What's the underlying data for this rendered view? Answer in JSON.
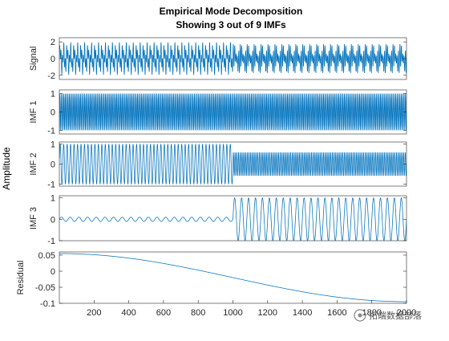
{
  "figure": {
    "title_line1": "Empirical Mode Decomposition",
    "title_line2": "Showing 3 out of 9 IMFs",
    "common_ylabel": "Amplitude",
    "watermark": "拓端数据部落"
  },
  "colors": {
    "line": "#0072BD",
    "axes": "#262626",
    "background": "#ffffff"
  },
  "chart_data": {
    "type": "line",
    "xlim": [
      0,
      2000
    ],
    "x_ticks": [
      200,
      400,
      600,
      800,
      1000,
      1200,
      1400,
      1600,
      1800,
      2000
    ],
    "x_tick_labels": [
      "200",
      "400",
      "600",
      "800",
      "1000",
      "1200",
      "1400",
      "1600",
      "1800",
      "2000"
    ],
    "n_samples": 2000,
    "panels": [
      {
        "ylabel": "Signal",
        "ylim": [
          -2.5,
          2.5
        ],
        "y_ticks": [
          -2,
          0,
          2
        ],
        "y_tick_labels": [
          "-2",
          "0",
          "2"
        ],
        "components": [
          {
            "from": 1,
            "to": 1000,
            "frequency_cycles_per_sample": 0.125,
            "amplitude": 1.0
          },
          {
            "from": 1,
            "to": 1000,
            "frequency_cycles_per_sample": 0.05,
            "amplitude": 1.0
          },
          {
            "from": 1001,
            "to": 2000,
            "frequency_cycles_per_sample": 0.125,
            "amplitude": 1.0
          },
          {
            "from": 1001,
            "to": 2000,
            "frequency_cycles_per_sample": 0.1,
            "amplitude": 0.6
          },
          {
            "from": 1001,
            "to": 2000,
            "frequency_cycles_per_sample": 0.025,
            "amplitude": 0.5
          }
        ]
      },
      {
        "ylabel": "IMF 1",
        "ylim": [
          -1.2,
          1.2
        ],
        "y_ticks": [
          -1,
          0,
          1
        ],
        "y_tick_labels": [
          "-1",
          "0",
          "1"
        ],
        "components": [
          {
            "from": 1,
            "to": 1000,
            "frequency_cycles_per_sample": 0.125,
            "amplitude": 1.0
          },
          {
            "from": 1001,
            "to": 2000,
            "frequency_cycles_per_sample": 0.125,
            "amplitude": 1.0
          }
        ]
      },
      {
        "ylabel": "IMF 2",
        "ylim": [
          -1.1,
          1.1
        ],
        "y_ticks": [
          -1,
          0,
          1
        ],
        "y_tick_labels": [
          "-1",
          "0",
          "1"
        ],
        "components": [
          {
            "from": 1,
            "to": 1000,
            "frequency_cycles_per_sample": 0.05,
            "amplitude": 1.0
          },
          {
            "from": 1001,
            "to": 2000,
            "frequency_cycles_per_sample": 0.1,
            "amplitude": 0.6
          }
        ]
      },
      {
        "ylabel": "IMF 3",
        "ylim": [
          -1.0,
          1.1
        ],
        "y_ticks": [
          -1,
          0,
          1
        ],
        "y_tick_labels": [
          "-1",
          "0",
          "1"
        ],
        "components": [
          {
            "from": 1,
            "to": 1000,
            "frequency_cycles_per_sample": 0.02,
            "amplitude": 0.1
          },
          {
            "from": 1001,
            "to": 2000,
            "frequency_cycles_per_sample": 0.025,
            "amplitude": 1.0
          }
        ]
      },
      {
        "ylabel": "Residual",
        "ylim": [
          -0.1,
          0.06
        ],
        "y_ticks": [
          -0.1,
          -0.05,
          0,
          0.05
        ],
        "y_tick_labels": [
          "-0.1",
          "-0.05",
          "0",
          "0.05"
        ],
        "trend": {
          "start_value": 0.055,
          "end_value": -0.095
        }
      }
    ]
  }
}
